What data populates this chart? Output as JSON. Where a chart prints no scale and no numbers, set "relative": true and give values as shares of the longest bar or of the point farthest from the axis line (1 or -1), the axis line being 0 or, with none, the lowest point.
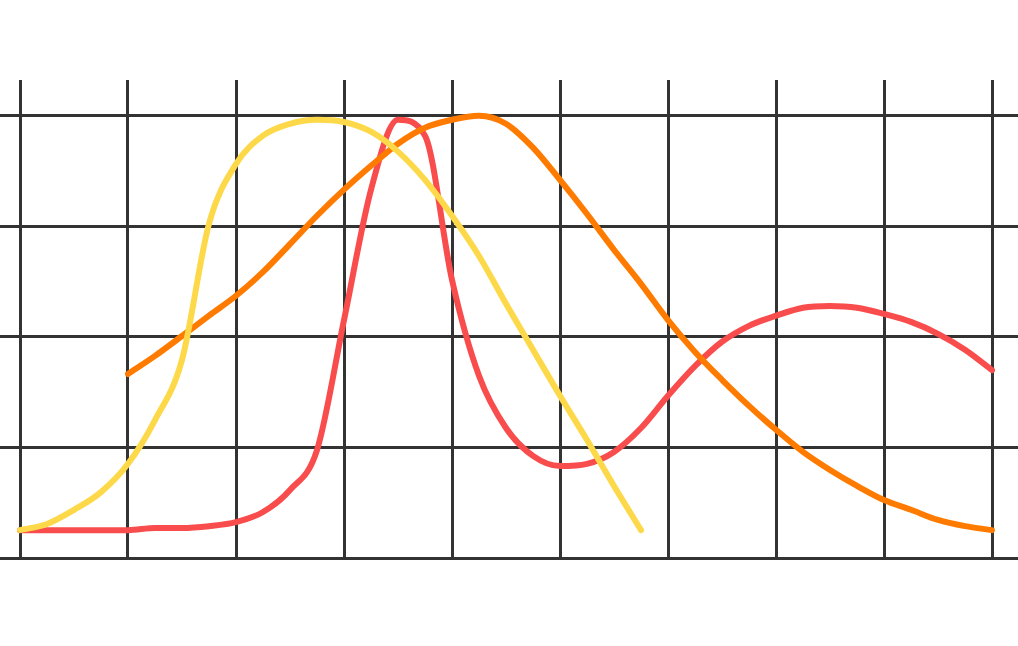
{
  "chart_data": {
    "type": "line",
    "relative": true,
    "grid": true,
    "marker": "none",
    "line_style": "solid",
    "categories": [
      null,
      null,
      null,
      null,
      null,
      null,
      null,
      null,
      null,
      null,
      null,
      null,
      null,
      null,
      null,
      null,
      null,
      null,
      null,
      null,
      null,
      null,
      null,
      null,
      null,
      null,
      null,
      null,
      null,
      null,
      null,
      null,
      null,
      null,
      null,
      null,
      null
    ],
    "series": [
      {
        "color": "#fdd94a",
        "values": [
          0.063,
          0.077,
          0.109,
          0.149,
          0.213,
          0.312,
          0.448,
          0.756,
          0.891,
          0.955,
          0.982,
          0.991,
          0.986,
          0.964,
          0.919,
          0.855,
          0.774,
          0.683,
          0.575,
          0.471,
          0.367,
          0.267,
          0.163,
          0.063,
          null,
          null,
          null,
          null,
          null,
          null,
          null,
          null,
          null,
          null,
          null,
          null,
          null
        ]
      },
      {
        "color": "#ff7b00",
        "values": [
          null,
          null,
          null,
          null,
          0.416,
          0.457,
          0.502,
          0.548,
          0.593,
          0.647,
          0.71,
          0.774,
          0.833,
          0.887,
          0.937,
          0.973,
          0.991,
          1.0,
          0.982,
          0.928,
          0.855,
          0.778,
          0.697,
          0.62,
          0.538,
          0.466,
          0.403,
          0.344,
          0.29,
          0.24,
          0.199,
          0.163,
          0.131,
          0.109,
          0.086,
          0.072,
          0.063
        ]
      },
      {
        "color": "#f94c4c",
        "values": [
          0.063,
          0.063,
          0.063,
          0.063,
          0.063,
          0.068,
          0.068,
          0.072,
          0.081,
          0.104,
          0.154,
          0.244,
          0.538,
          0.833,
          0.991,
          0.955,
          0.629,
          0.412,
          0.294,
          0.231,
          0.208,
          0.213,
          0.24,
          0.294,
          0.367,
          0.434,
          0.489,
          0.525,
          0.548,
          0.566,
          0.57,
          0.566,
          0.552,
          0.534,
          0.507,
          0.471,
          0.425
        ]
      }
    ]
  }
}
